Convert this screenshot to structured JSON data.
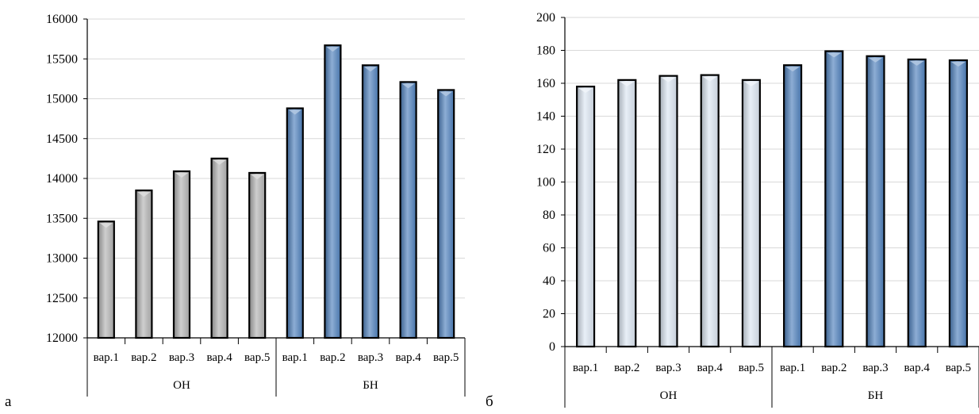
{
  "panels": [
    {
      "label": "а",
      "chart_data": {
        "type": "bar",
        "categories": [
          "вар.1",
          "вар.2",
          "вар.3",
          "вар.4",
          "вар.5",
          "вар.1",
          "вар.2",
          "вар.3",
          "вар.4",
          "вар.5"
        ],
        "groups": [
          {
            "name": "ОН",
            "from": 0,
            "to": 4
          },
          {
            "name": "БН",
            "from": 5,
            "to": 9
          }
        ],
        "values": [
          13460,
          13850,
          14090,
          14250,
          14070,
          14880,
          15670,
          15420,
          15210,
          15110
        ],
        "bar_colors": [
          "#b3b3b3",
          "#b3b3b3",
          "#b3b3b3",
          "#b3b3b3",
          "#b3b3b3",
          "#4f81bd",
          "#4f81bd",
          "#4f81bd",
          "#4f81bd",
          "#4f81bd"
        ],
        "yticks": [
          12000,
          12500,
          13000,
          13500,
          14000,
          14500,
          15000,
          15500,
          16000
        ],
        "ylim": [
          12000,
          16000
        ],
        "grid": true
      }
    },
    {
      "label": "б",
      "chart_data": {
        "type": "bar",
        "categories": [
          "вар.1",
          "вар.2",
          "вар.3",
          "вар.4",
          "вар.5",
          "вар.1",
          "вар.2",
          "вар.3",
          "вар.4",
          "вар.5"
        ],
        "groups": [
          {
            "name": "ОН",
            "from": 0,
            "to": 4
          },
          {
            "name": "БН",
            "from": 5,
            "to": 9
          }
        ],
        "values": [
          158,
          162,
          164.5,
          165,
          162,
          171,
          179.5,
          176.5,
          174.5,
          174
        ],
        "bar_colors": [
          "#dce6f2",
          "#dce6f2",
          "#dce6f2",
          "#dce6f2",
          "#dce6f2",
          "#4f81bd",
          "#4f81bd",
          "#4f81bd",
          "#4f81bd",
          "#4f81bd"
        ],
        "yticks": [
          0,
          20,
          40,
          60,
          80,
          100,
          120,
          140,
          160,
          180,
          200
        ],
        "ylim": [
          0,
          200
        ],
        "grid": true
      }
    }
  ]
}
